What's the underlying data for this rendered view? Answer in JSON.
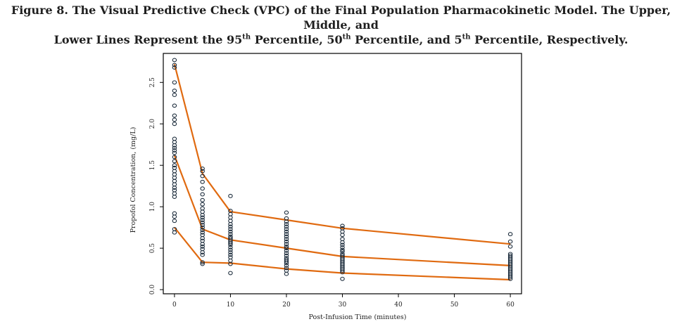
{
  "caption": {
    "line1": "Figure 8. The Visual Predictive Check (VPC) of the Final Population Pharmacokinetic Model. The Upper, Middle, and",
    "line2_parts": [
      {
        "text": "Lower Lines Represent the 95",
        "sup": false
      },
      {
        "text": "th",
        "sup": true
      },
      {
        "text": " Percentile, 50",
        "sup": false
      },
      {
        "text": "th",
        "sup": true
      },
      {
        "text": " Percentile, and 5",
        "sup": false
      },
      {
        "text": "th",
        "sup": true
      },
      {
        "text": " Percentile, Respectively.",
        "sup": false
      }
    ]
  },
  "chart_data": {
    "type": "scatter",
    "title": "",
    "xlabel": "Post-Infusion Time (minutes)",
    "ylabel": "Propofol Concentration, (mg/L)",
    "xlim": [
      -2,
      62
    ],
    "ylim": [
      -0.05,
      2.85
    ],
    "xticks": [
      0,
      10,
      20,
      30,
      40,
      50,
      60
    ],
    "yticks": [
      0.0,
      0.5,
      1.0,
      1.5,
      2.0,
      2.5
    ],
    "ytick_labels": [
      "0.0",
      "0.5",
      "1.0",
      "1.5",
      "2.0",
      "2.5"
    ],
    "grid": false,
    "point_color": "#1a2a3a",
    "line_color": "#e06a10",
    "observed": [
      {
        "x": 0,
        "y": [
          2.77,
          2.71,
          2.68,
          2.5,
          2.4,
          2.35,
          2.22,
          2.1,
          2.05,
          2.0,
          1.82,
          1.78,
          1.74,
          1.71,
          1.68,
          1.65,
          1.6,
          1.55,
          1.5,
          1.47,
          1.43,
          1.39,
          1.35,
          1.31,
          1.27,
          1.23,
          1.2,
          1.16,
          1.12,
          0.92,
          0.88,
          0.83,
          0.73,
          0.69
        ]
      },
      {
        "x": 5,
        "y": [
          1.46,
          1.43,
          1.37,
          1.3,
          1.22,
          1.15,
          1.08,
          1.03,
          0.98,
          0.94,
          0.9,
          0.87,
          0.84,
          0.81,
          0.78,
          0.75,
          0.72,
          0.69,
          0.66,
          0.62,
          0.59,
          0.55,
          0.52,
          0.49,
          0.45,
          0.42,
          0.33,
          0.31
        ]
      },
      {
        "x": 10,
        "y": [
          1.13,
          0.95,
          0.91,
          0.87,
          0.83,
          0.79,
          0.76,
          0.73,
          0.7,
          0.67,
          0.64,
          0.62,
          0.6,
          0.58,
          0.56,
          0.54,
          0.51,
          0.48,
          0.45,
          0.42,
          0.39,
          0.35,
          0.31,
          0.2
        ]
      },
      {
        "x": 20,
        "y": [
          0.93,
          0.86,
          0.82,
          0.79,
          0.76,
          0.73,
          0.7,
          0.67,
          0.64,
          0.61,
          0.58,
          0.55,
          0.52,
          0.5,
          0.47,
          0.44,
          0.41,
          0.38,
          0.36,
          0.34,
          0.32,
          0.29,
          0.26,
          0.23,
          0.19
        ]
      },
      {
        "x": 30,
        "y": [
          0.77,
          0.74,
          0.7,
          0.66,
          0.61,
          0.57,
          0.54,
          0.51,
          0.48,
          0.46,
          0.43,
          0.41,
          0.39,
          0.37,
          0.35,
          0.33,
          0.31,
          0.29,
          0.27,
          0.25,
          0.23,
          0.21,
          0.13
        ]
      },
      {
        "x": 60,
        "y": [
          0.67,
          0.58,
          0.52,
          0.43,
          0.41,
          0.39,
          0.37,
          0.35,
          0.33,
          0.31,
          0.29,
          0.27,
          0.25,
          0.23,
          0.21,
          0.19,
          0.17,
          0.15,
          0.13
        ]
      }
    ],
    "series": [
      {
        "x": [
          0,
          5,
          10,
          20,
          30,
          60
        ],
        "y": [
          2.72,
          1.4,
          0.94,
          0.84,
          0.74,
          0.55
        ]
      },
      {
        "x": [
          0,
          5,
          10,
          20,
          30,
          60
        ],
        "y": [
          1.62,
          0.73,
          0.6,
          0.5,
          0.4,
          0.29
        ]
      },
      {
        "x": [
          0,
          5,
          10,
          20,
          30,
          60
        ],
        "y": [
          0.75,
          0.33,
          0.32,
          0.25,
          0.2,
          0.12
        ]
      }
    ]
  }
}
